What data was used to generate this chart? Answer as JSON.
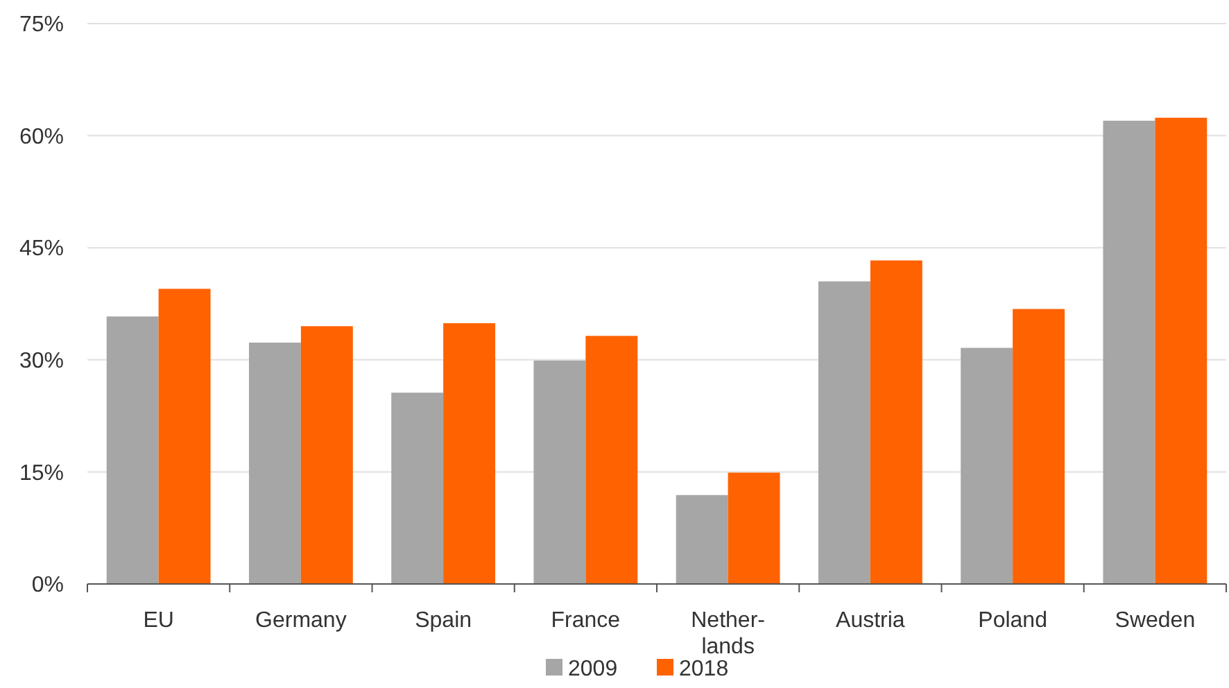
{
  "chart_data": {
    "type": "bar",
    "categories": [
      "EU",
      "Germany",
      "Spain",
      "France",
      "Nether-\nlands",
      "Austria",
      "Poland",
      "Sweden"
    ],
    "series": [
      {
        "name": "2009",
        "color": "#a6a6a6",
        "values": [
          35.8,
          32.3,
          25.6,
          29.9,
          11.9,
          40.5,
          31.6,
          62.0
        ]
      },
      {
        "name": "2018",
        "color": "#ff6200",
        "values": [
          39.5,
          34.5,
          34.9,
          33.2,
          14.9,
          43.3,
          36.8,
          62.4
        ]
      }
    ],
    "ylim": [
      0,
      75
    ],
    "yticks": [
      {
        "value": 0,
        "label": "0%"
      },
      {
        "value": 15,
        "label": "15%"
      },
      {
        "value": 30,
        "label": "30%"
      },
      {
        "value": 45,
        "label": "45%"
      },
      {
        "value": 60,
        "label": "60%"
      },
      {
        "value": 75,
        "label": "75%"
      }
    ],
    "grid": "y",
    "legend": "bottom"
  }
}
